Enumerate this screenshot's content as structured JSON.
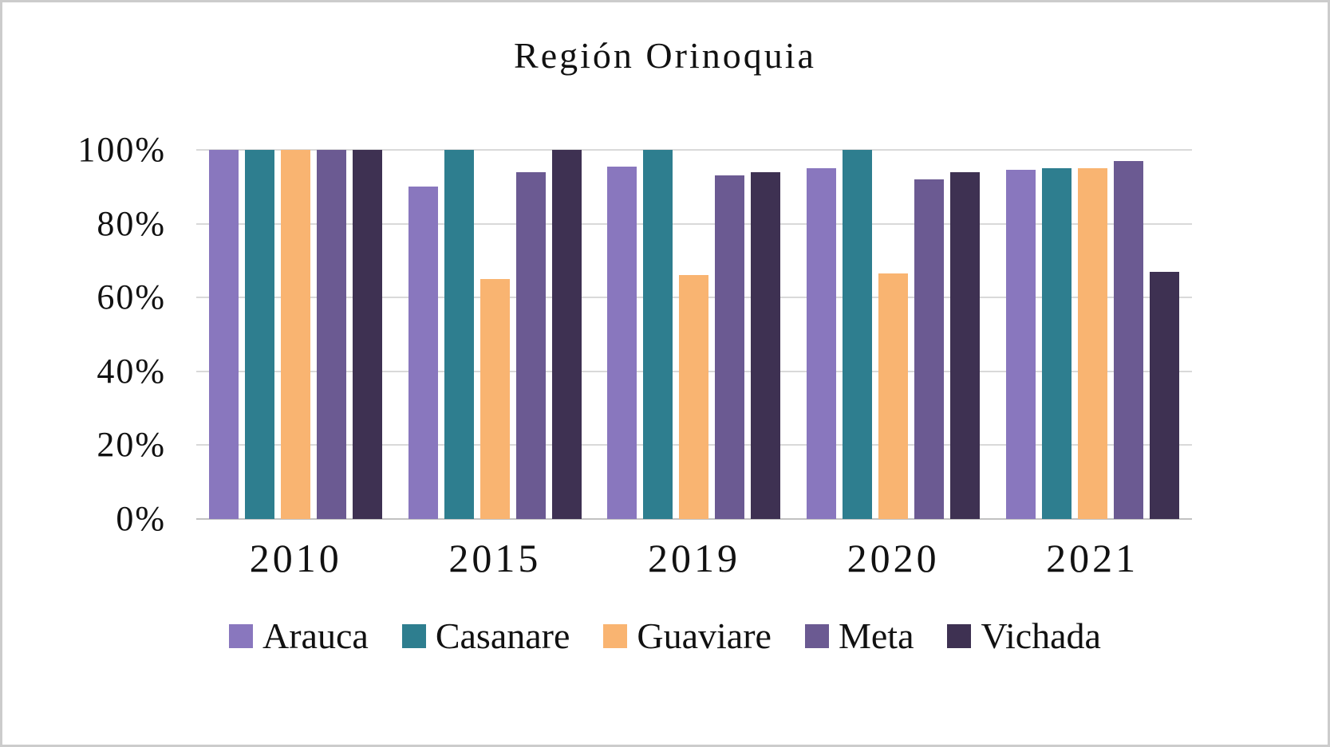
{
  "panel": {
    "background": "#ffffff",
    "border_color": "#cccccc",
    "gridline_color": "#d9d9d9",
    "axis_line_color": "#c2c2c2"
  },
  "chart_data": {
    "type": "bar",
    "title": "Región Orinoquia",
    "xlabel": "",
    "ylabel": "",
    "categories": [
      "2010",
      "2015",
      "2019",
      "2020",
      "2021"
    ],
    "series": [
      {
        "name": "Arauca",
        "color": "#8977BE",
        "values": [
          100,
          90,
          95.5,
          95,
          94.5
        ]
      },
      {
        "name": "Casanare",
        "color": "#2E7E8F",
        "values": [
          100,
          100,
          100,
          100,
          95
        ]
      },
      {
        "name": "Guaviare",
        "color": "#F9B471",
        "values": [
          100,
          65,
          66,
          66.5,
          95
        ]
      },
      {
        "name": "Meta",
        "color": "#6B5A92",
        "values": [
          100,
          94,
          93,
          92,
          97
        ]
      },
      {
        "name": "Vichada",
        "color": "#3E3152",
        "values": [
          100,
          100,
          94,
          94,
          67
        ]
      }
    ],
    "ylim": [
      0,
      100
    ],
    "yticks": [
      "0%",
      "20%",
      "40%",
      "60%",
      "80%",
      "100%"
    ],
    "ytick_values": [
      0,
      20,
      40,
      60,
      80,
      100
    ],
    "grid": true,
    "legend_position": "bottom"
  }
}
